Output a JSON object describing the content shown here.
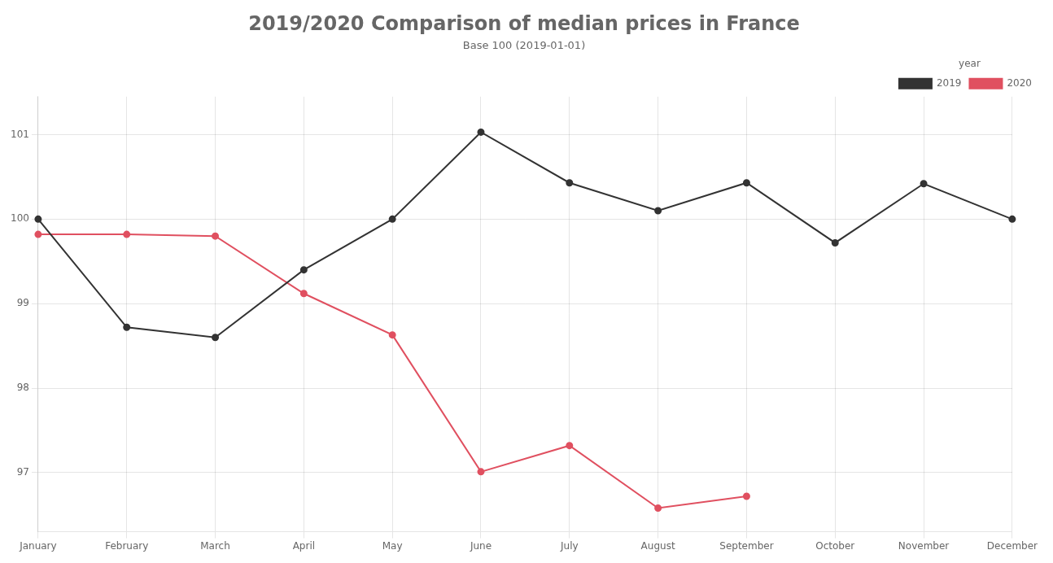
{
  "chart_data": {
    "type": "line",
    "title": "2019/2020 Comparison of median prices in France",
    "subtitle": "Base 100 (2019-01-01)",
    "categories": [
      "January",
      "February",
      "March",
      "April",
      "May",
      "June",
      "July",
      "August",
      "September",
      "October",
      "November",
      "December"
    ],
    "series": [
      {
        "name": "2019",
        "color": "#333333",
        "marker": "circle",
        "values": [
          100.0,
          98.72,
          98.6,
          99.4,
          100.0,
          101.03,
          100.43,
          100.1,
          100.43,
          99.72,
          100.42,
          100.0
        ]
      },
      {
        "name": "2020",
        "color": "#e05060",
        "marker": "circle",
        "values": [
          99.82,
          99.82,
          99.8,
          99.12,
          98.63,
          97.01,
          97.32,
          96.58,
          96.72,
          null,
          null,
          null
        ]
      }
    ],
    "ylim": [
      96.3,
      101.45
    ],
    "yticks": [
      97,
      98,
      99,
      100,
      101
    ],
    "grid": true,
    "legend": "upper right",
    "legend_title": "year"
  }
}
